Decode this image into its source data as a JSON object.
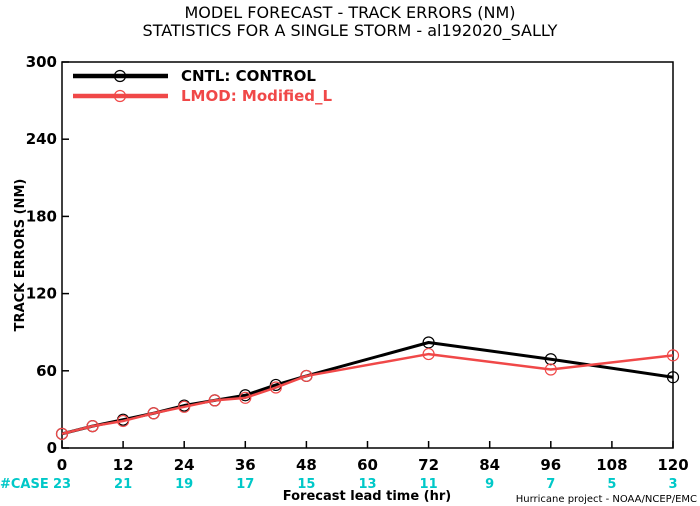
{
  "chart_data": {
    "type": "line",
    "title": "MODEL FORECAST - TRACK ERRORS (NM)",
    "subtitle": "STATISTICS FOR A SINGLE STORM - al192020_SALLY",
    "xlabel": "Forecast lead time (hr)",
    "ylabel": "TRACK ERRORS (NM)",
    "xlim": [
      0,
      120
    ],
    "ylim": [
      0,
      300
    ],
    "x_ticks": [
      "0",
      "12",
      "24",
      "36",
      "48",
      "60",
      "72",
      "84",
      "96",
      "108",
      "120"
    ],
    "y_ticks": [
      "0",
      "60",
      "120",
      "180",
      "240",
      "300"
    ],
    "grid": false,
    "legend_position": "top-left",
    "series": [
      {
        "name": "CNTL: CONTROL",
        "color": "#000000",
        "x": [
          0,
          6,
          12,
          18,
          24,
          30,
          36,
          42,
          48,
          72,
          96,
          120
        ],
        "y": [
          11,
          17,
          22,
          27,
          33,
          37,
          41,
          49,
          56,
          82,
          69,
          55
        ]
      },
      {
        "name": "LMOD: Modified_L",
        "color": "#f04848",
        "x": [
          0,
          6,
          12,
          18,
          24,
          30,
          36,
          42,
          48,
          72,
          96,
          120
        ],
        "y": [
          11,
          17,
          21,
          27,
          32,
          37,
          39,
          47,
          56,
          73,
          61,
          72
        ]
      }
    ],
    "case_label": "#CASE",
    "case_color": "#00c8c8",
    "case_counts": [
      {
        "x": 0,
        "n": "23"
      },
      {
        "x": 12,
        "n": "21"
      },
      {
        "x": 24,
        "n": "19"
      },
      {
        "x": 36,
        "n": "17"
      },
      {
        "x": 48,
        "n": "15"
      },
      {
        "x": 60,
        "n": "13"
      },
      {
        "x": 72,
        "n": "11"
      },
      {
        "x": 84,
        "n": "9"
      },
      {
        "x": 96,
        "n": "7"
      },
      {
        "x": 108,
        "n": "5"
      },
      {
        "x": 120,
        "n": "3"
      }
    ],
    "credit": "Hurricane project - NOAA/NCEP/EMC"
  }
}
